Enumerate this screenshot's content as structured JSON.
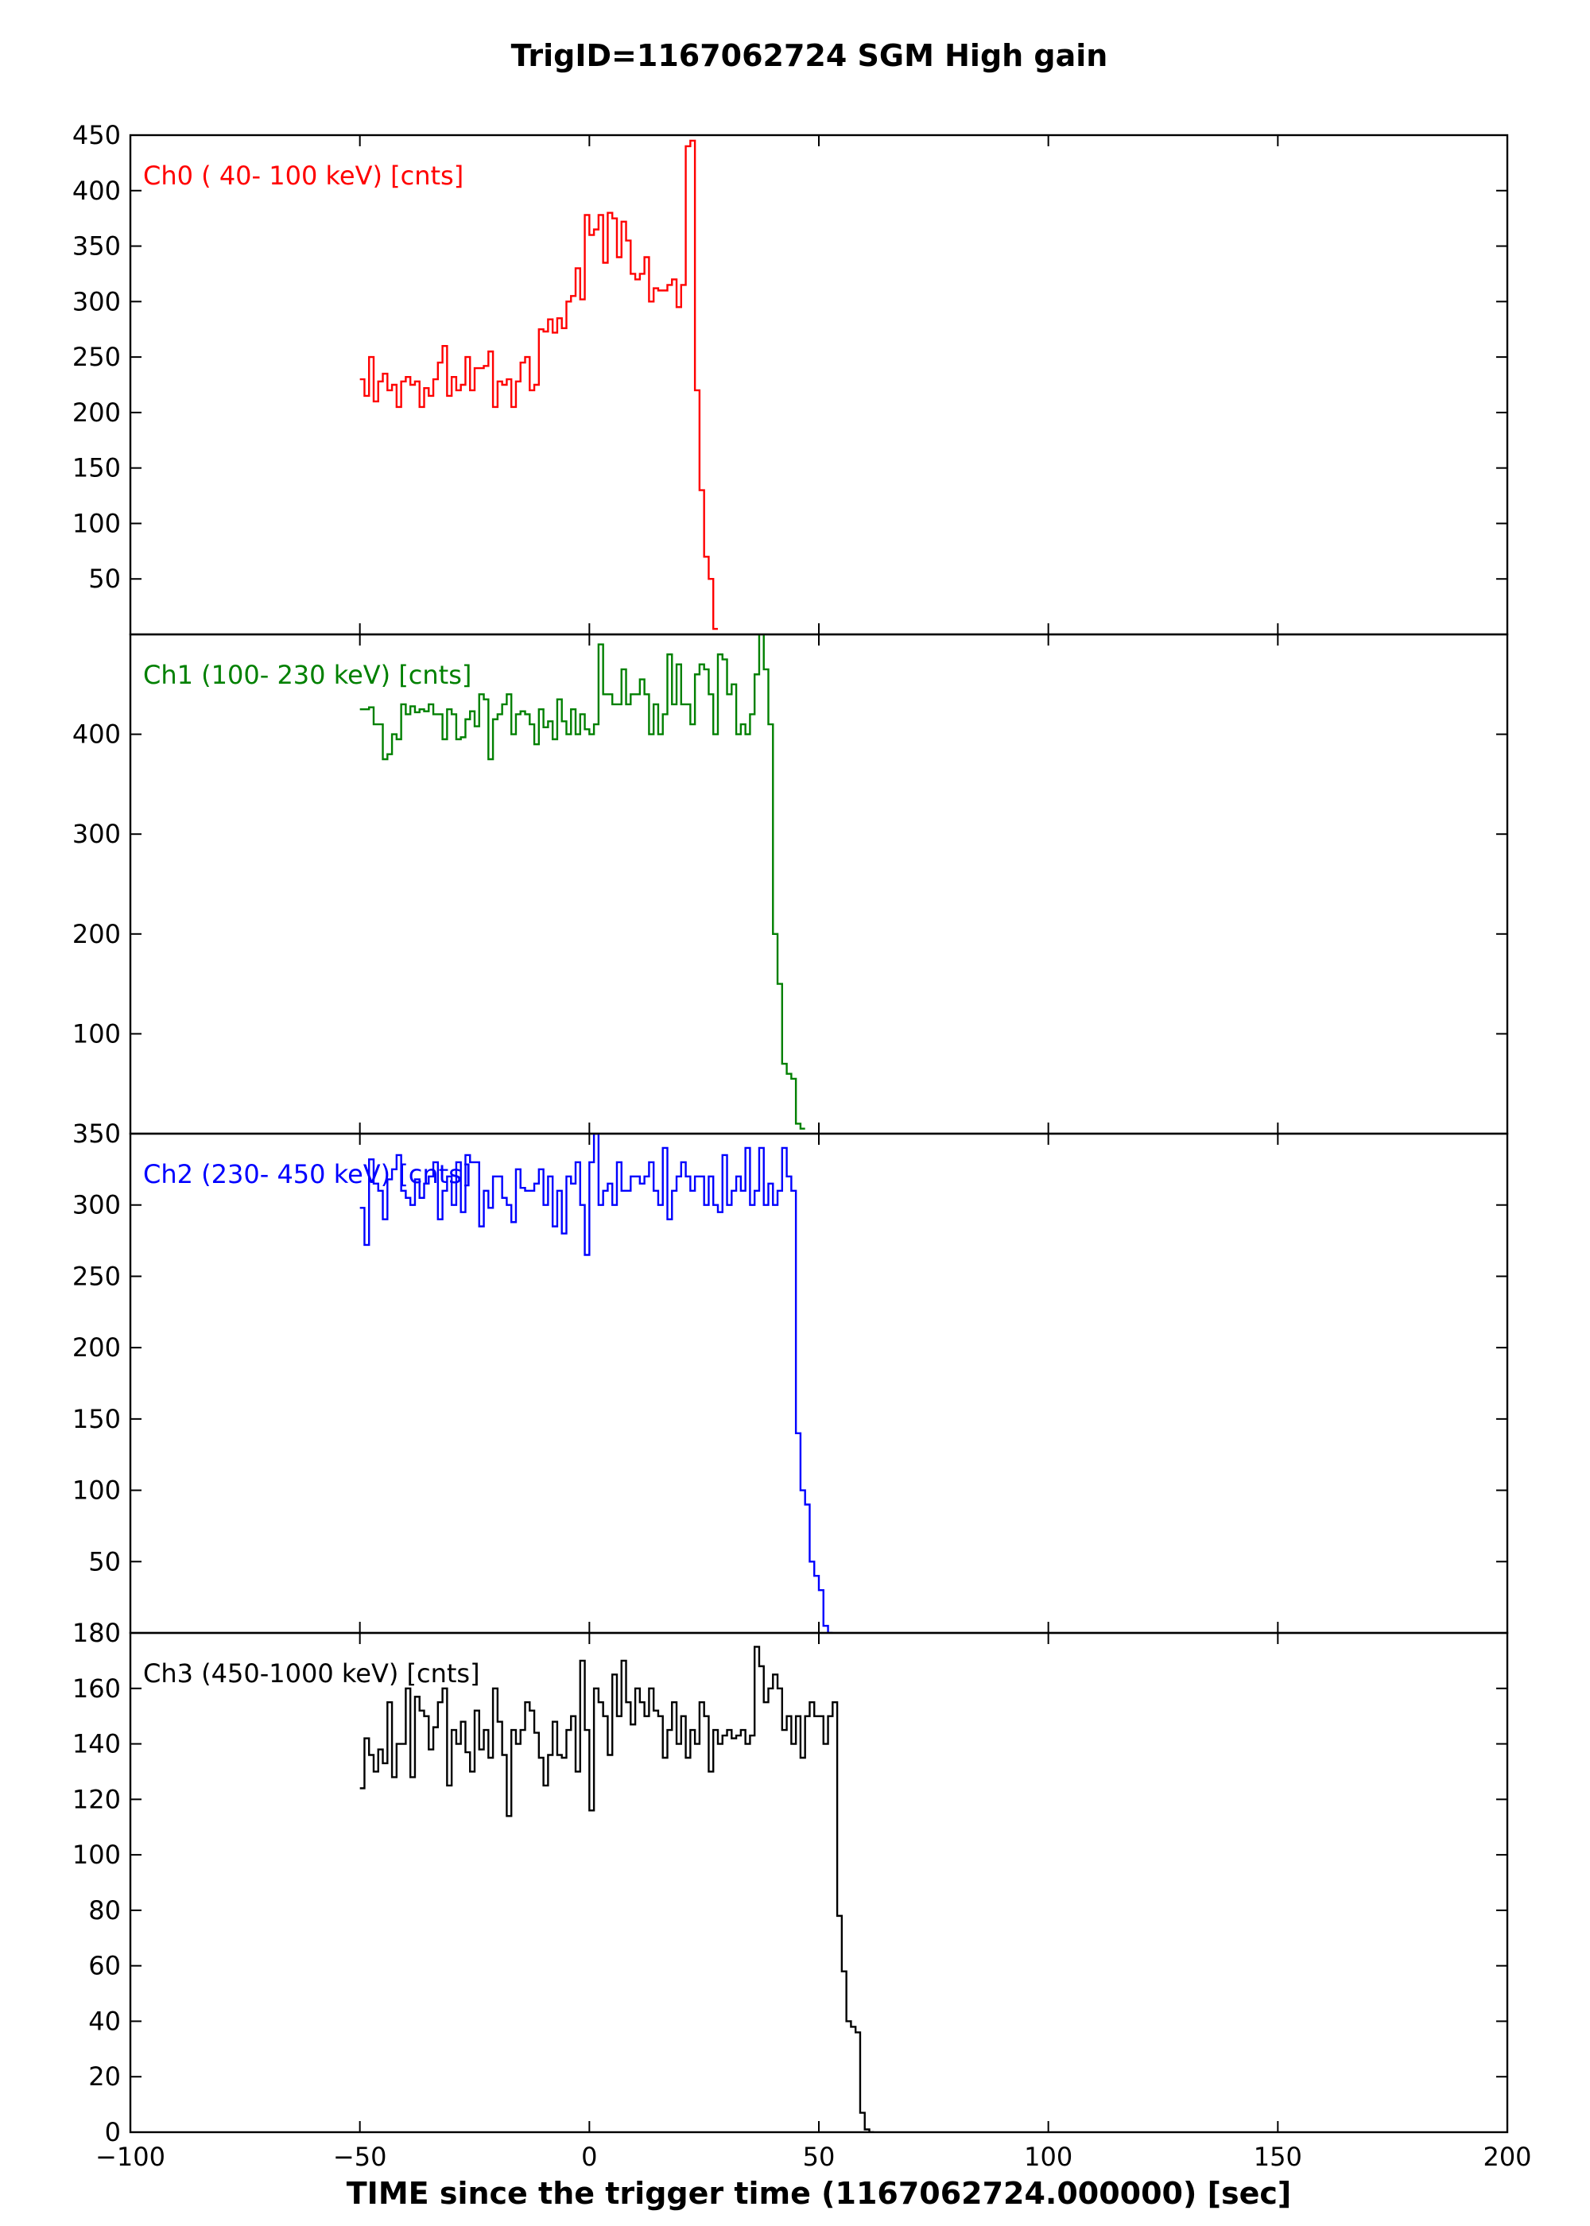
{
  "chart_data": {
    "type": "line",
    "title": "TrigID=1167062724 SGM High gain",
    "xlabel": "TIME since the trigger time (1167062724.000000) [sec]",
    "xlim": [
      -100,
      200
    ],
    "xticks": [
      -100,
      -50,
      0,
      50,
      100,
      150,
      200
    ],
    "xtick_labels": [
      "−100",
      "−50",
      "0",
      "50",
      "100",
      "150",
      "200"
    ],
    "step": true,
    "bin_width": 1,
    "x_start": -50,
    "panels": [
      {
        "label": "Ch0 ( 40- 100 keV) [cnts]",
        "color": "#ff0000",
        "ylim": [
          0,
          450
        ],
        "yticks": [
          50,
          100,
          150,
          200,
          250,
          300,
          350,
          400,
          450
        ],
        "values": [
          230,
          215,
          250,
          210,
          228,
          235,
          220,
          225,
          205,
          228,
          232,
          225,
          228,
          205,
          222,
          215,
          230,
          245,
          260,
          215,
          232,
          220,
          225,
          250,
          220,
          240,
          240,
          242,
          255,
          205,
          228,
          225,
          230,
          205,
          228,
          245,
          250,
          220,
          225,
          275,
          273,
          284,
          272,
          285,
          276,
          300,
          305,
          330,
          302,
          378,
          360,
          365,
          378,
          335,
          380,
          375,
          340,
          372,
          355,
          325,
          320,
          325,
          340,
          300,
          312,
          310,
          310,
          315,
          320,
          295,
          315,
          440,
          445,
          220,
          130,
          70,
          50,
          5
        ]
      },
      {
        "label": "Ch1 (100- 230 keV) [cnts]",
        "color": "#008000",
        "ylim": [
          0,
          500
        ],
        "yticks": [
          100,
          200,
          300,
          400
        ],
        "values": [
          425,
          425,
          427,
          410,
          410,
          375,
          380,
          400,
          395,
          430,
          420,
          428,
          422,
          425,
          423,
          430,
          420,
          420,
          395,
          425,
          420,
          395,
          397,
          415,
          423,
          408,
          440,
          435,
          375,
          415,
          420,
          430,
          440,
          400,
          420,
          423,
          420,
          410,
          390,
          425,
          407,
          413,
          395,
          435,
          413,
          400,
          425,
          400,
          420,
          405,
          400,
          410,
          490,
          440,
          440,
          430,
          430,
          465,
          430,
          440,
          440,
          455,
          440,
          400,
          430,
          400,
          420,
          480,
          430,
          470,
          430,
          430,
          410,
          460,
          470,
          465,
          440,
          400,
          480,
          475,
          440,
          450,
          400,
          410,
          400,
          420,
          460,
          520,
          465,
          410,
          200,
          150,
          70,
          60,
          55,
          10,
          5
        ]
      },
      {
        "label": "Ch2 (230- 450 keV) [cnts]",
        "color": "#0000ff",
        "ylim": [
          0,
          350
        ],
        "yticks": [
          50,
          100,
          150,
          200,
          250,
          300,
          350
        ],
        "values": [
          298,
          272,
          332,
          315,
          310,
          290,
          318,
          325,
          335,
          310,
          305,
          300,
          318,
          305,
          315,
          320,
          330,
          290,
          310,
          320,
          300,
          330,
          295,
          335,
          330,
          330,
          285,
          310,
          298,
          320,
          320,
          305,
          300,
          288,
          325,
          312,
          310,
          310,
          315,
          325,
          300,
          320,
          285,
          310,
          280,
          320,
          315,
          330,
          300,
          265,
          330,
          350,
          300,
          310,
          315,
          300,
          330,
          310,
          310,
          320,
          320,
          315,
          320,
          330,
          310,
          300,
          340,
          290,
          310,
          320,
          330,
          320,
          310,
          320,
          320,
          300,
          320,
          300,
          295,
          335,
          300,
          310,
          320,
          310,
          340,
          300,
          310,
          340,
          300,
          315,
          300,
          310,
          340,
          320,
          310,
          140,
          100,
          90,
          50,
          40,
          30,
          5,
          0
        ]
      },
      {
        "label": "Ch3 (450-1000 keV) [cnts]",
        "color": "#000000",
        "ylim": [
          0,
          180
        ],
        "yticks": [
          0,
          20,
          40,
          60,
          80,
          100,
          120,
          140,
          160,
          180
        ],
        "values": [
          124,
          142,
          136,
          130,
          138,
          133,
          155,
          128,
          140,
          140,
          160,
          128,
          157,
          152,
          150,
          138,
          146,
          155,
          160,
          125,
          145,
          140,
          148,
          137,
          130,
          152,
          138,
          145,
          135,
          160,
          148,
          136,
          114,
          145,
          140,
          145,
          155,
          152,
          144,
          135,
          125,
          136,
          148,
          136,
          135,
          145,
          150,
          130,
          170,
          145,
          116,
          160,
          155,
          150,
          136,
          165,
          150,
          170,
          155,
          147,
          160,
          155,
          150,
          160,
          152,
          150,
          135,
          145,
          155,
          140,
          150,
          135,
          145,
          140,
          155,
          150,
          130,
          145,
          140,
          143,
          145,
          142,
          143,
          145,
          140,
          143,
          175,
          168,
          155,
          160,
          165,
          160,
          145,
          150,
          140,
          150,
          135,
          150,
          155,
          150,
          150,
          140,
          150,
          155,
          78,
          58,
          40,
          38,
          36,
          7,
          1,
          0
        ]
      }
    ]
  }
}
